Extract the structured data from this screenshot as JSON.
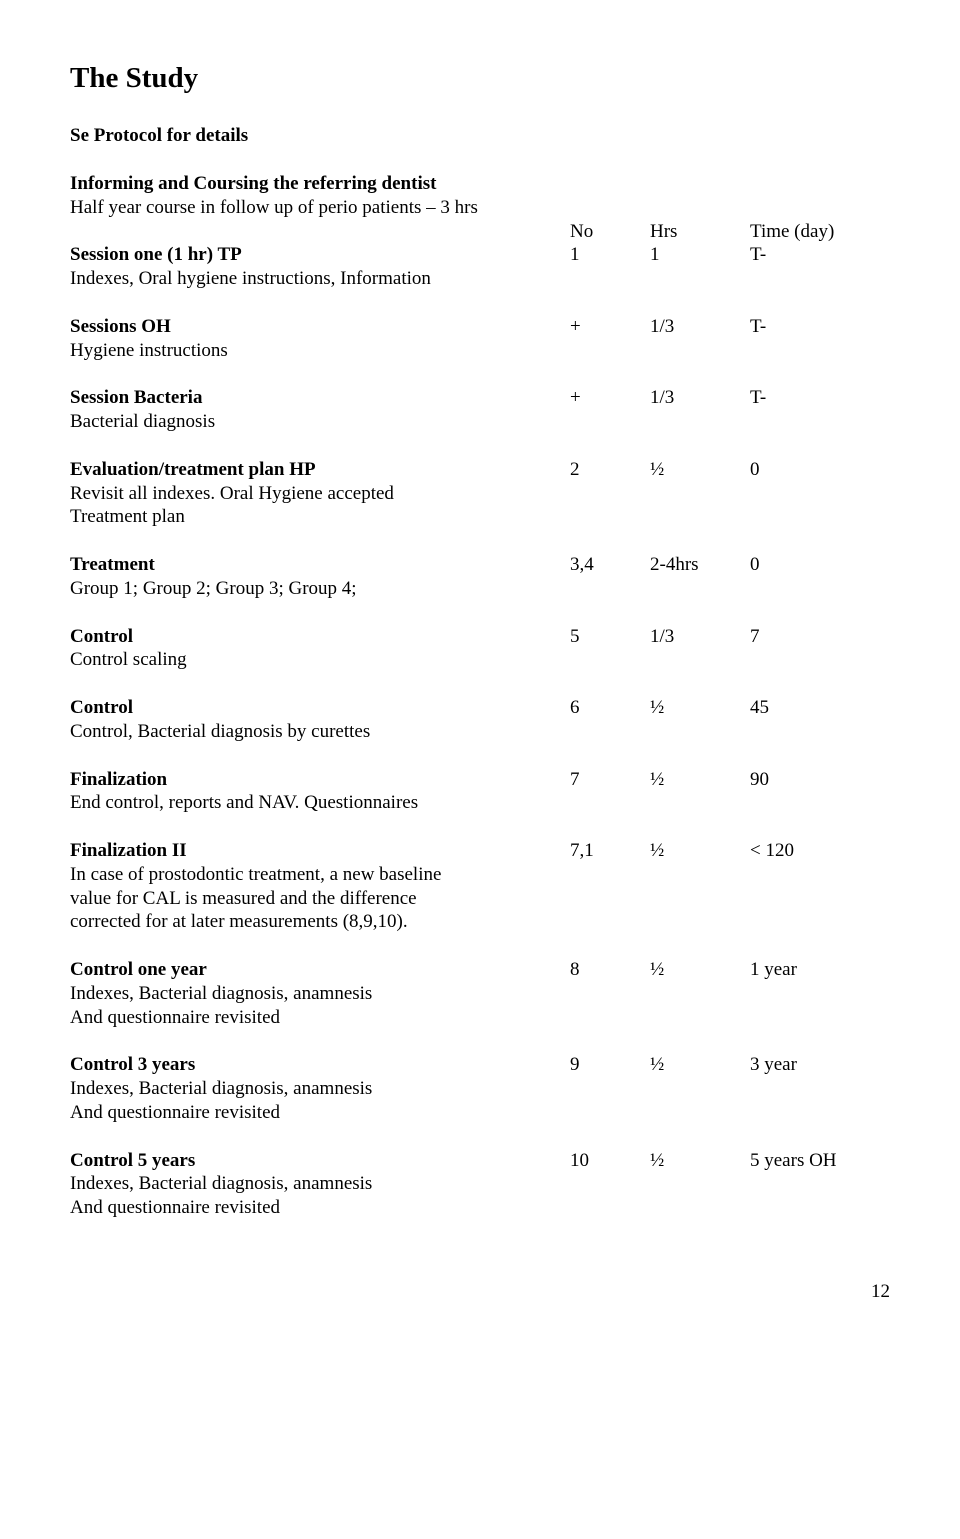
{
  "title": "The Study",
  "subtitle": "Se Protocol for details",
  "intro_bold": "Informing and Coursing the referring dentist",
  "intro_line": "Half year course in follow up of perio patients – 3 hrs",
  "head": {
    "no": "No",
    "hrs": "Hrs",
    "time": "Time (day)"
  },
  "rows": {
    "session_one": {
      "label": "Session one (1 hr) TP",
      "no": "1",
      "hrs": "1",
      "time": "T-",
      "desc1": "Indexes, Oral hygiene instructions, Information"
    },
    "sessions_oh": {
      "label": "Sessions OH",
      "no": "+",
      "hrs": "1/3",
      "time": "T-",
      "desc1": "Hygiene instructions"
    },
    "session_bacteria": {
      "label": "Session Bacteria",
      "no": "+",
      "hrs": "1/3",
      "time": "T-",
      "desc1": "Bacterial diagnosis"
    },
    "eval_plan": {
      "label": "Evaluation/treatment plan  HP",
      "no": "2",
      "hrs": "½",
      "time": "0",
      "desc1": "Revisit all indexes. Oral Hygiene accepted",
      "desc2": "Treatment plan"
    },
    "treatment": {
      "label": "Treatment",
      "no": "3,4",
      "hrs": "2-4hrs",
      "time": "0",
      "desc1": "Group 1; Group 2; Group 3; Group 4;"
    },
    "control1": {
      "label": "Control",
      "no": "5",
      "hrs": "1/3",
      "time": "7",
      "desc1": "Control scaling"
    },
    "control2": {
      "label": "Control",
      "no": "6",
      "hrs": "½",
      "time": "45",
      "desc1": "Control, Bacterial diagnosis by curettes"
    },
    "finalization": {
      "label": "Finalization",
      "no": "7",
      "hrs": "½",
      "time": "90",
      "desc1": "End control, reports and NAV. Questionnaires"
    },
    "finalization2": {
      "label": "Finalization II",
      "no": "7,1",
      "hrs": "½",
      "time": "< 120",
      "desc1": "In case of prostodontic treatment, a new baseline",
      "desc2": "value for CAL is measured and the difference",
      "desc3": "corrected for at later measurements (8,9,10)."
    },
    "control_1yr": {
      "label": "Control one year",
      "no": "8",
      "hrs": "½",
      "time": "1 year",
      "desc1": "Indexes, Bacterial diagnosis, anamnesis",
      "desc2": "And questionnaire revisited"
    },
    "control_3yr": {
      "label": "Control 3 years",
      "no": "9",
      "hrs": "½",
      "time": "3 year",
      "desc1": "Indexes, Bacterial diagnosis, anamnesis",
      "desc2": "And questionnaire revisited"
    },
    "control_5yr": {
      "label": "Control 5 years",
      "no": "10",
      "hrs": "½",
      "time": "5 years OH",
      "desc1": "Indexes, Bacterial diagnosis, anamnesis",
      "desc2": "And questionnaire revisited"
    }
  },
  "page_number": "12"
}
